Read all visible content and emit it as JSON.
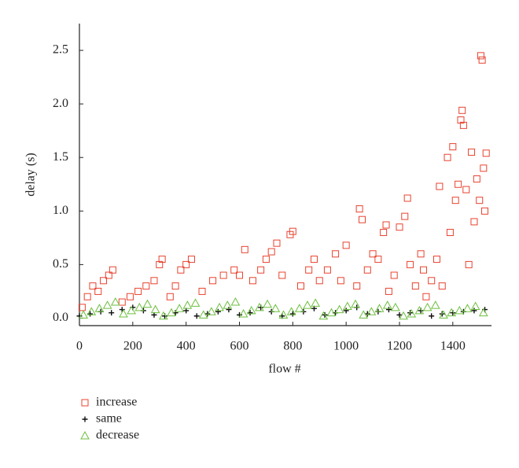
{
  "chart_data": {
    "type": "scatter",
    "xlabel": "flow #",
    "ylabel": "delay (s)",
    "xlim": [
      0,
      1545
    ],
    "ylim": [
      -0.07,
      2.75
    ],
    "xticks": [
      0,
      200,
      400,
      600,
      800,
      1000,
      1200,
      1400
    ],
    "yticks": [
      {
        "value": 0,
        "label": "0.0"
      },
      0.5,
      {
        "value": 1,
        "label": "1.0"
      },
      1.5,
      {
        "value": 2,
        "label": "2.0"
      },
      2.5
    ],
    "legend": "bottom",
    "series": [
      {
        "name": "increase",
        "color": "#e8432f",
        "marker": "square",
        "x": [
          10,
          30,
          50,
          70,
          90,
          110,
          125,
          160,
          190,
          220,
          250,
          280,
          300,
          310,
          340,
          360,
          380,
          400,
          420,
          460,
          500,
          540,
          580,
          600,
          620,
          650,
          680,
          700,
          720,
          740,
          760,
          790,
          800,
          830,
          860,
          880,
          900,
          930,
          960,
          980,
          1000,
          1040,
          1050,
          1060,
          1080,
          1100,
          1120,
          1140,
          1150,
          1160,
          1180,
          1200,
          1220,
          1230,
          1240,
          1260,
          1280,
          1290,
          1300,
          1320,
          1340,
          1350,
          1360,
          1380,
          1390,
          1400,
          1410,
          1420,
          1430,
          1435,
          1440,
          1450,
          1460,
          1470,
          1480,
          1490,
          1500,
          1505,
          1510,
          1515,
          1520,
          1525
        ],
        "values": [
          0.1,
          0.2,
          0.3,
          0.25,
          0.35,
          0.4,
          0.45,
          0.15,
          0.2,
          0.25,
          0.3,
          0.35,
          0.5,
          0.55,
          0.2,
          0.3,
          0.45,
          0.5,
          0.55,
          0.25,
          0.35,
          0.4,
          0.45,
          0.4,
          0.64,
          0.35,
          0.45,
          0.55,
          0.62,
          0.7,
          0.4,
          0.78,
          0.81,
          0.3,
          0.45,
          0.55,
          0.35,
          0.45,
          0.6,
          0.35,
          0.68,
          0.3,
          1.02,
          0.92,
          0.45,
          0.6,
          0.55,
          0.8,
          0.87,
          0.25,
          0.4,
          0.85,
          0.95,
          1.12,
          0.5,
          0.3,
          0.6,
          0.45,
          0.2,
          0.35,
          0.55,
          1.23,
          0.3,
          1.5,
          0.8,
          1.6,
          1.1,
          1.25,
          1.85,
          1.94,
          1.8,
          1.2,
          0.5,
          1.55,
          0.9,
          1.3,
          1.1,
          2.45,
          2.41,
          1.4,
          1.0,
          1.54
        ]
      },
      {
        "name": "same",
        "color": "#111111",
        "marker": "plus",
        "x": [
          0,
          40,
          80,
          120,
          160,
          200,
          240,
          280,
          320,
          360,
          400,
          440,
          480,
          520,
          560,
          600,
          640,
          680,
          720,
          760,
          800,
          840,
          880,
          920,
          960,
          1000,
          1040,
          1080,
          1120,
          1160,
          1200,
          1240,
          1280,
          1320,
          1360,
          1400,
          1440,
          1480,
          1520
        ],
        "values": [
          0.02,
          0.04,
          0.06,
          0.05,
          0.08,
          0.1,
          0.07,
          0.03,
          0.02,
          0.05,
          0.07,
          0.02,
          0.04,
          0.06,
          0.08,
          0.03,
          0.05,
          0.1,
          0.06,
          0.02,
          0.04,
          0.06,
          0.09,
          0.03,
          0.05,
          0.07,
          0.1,
          0.04,
          0.06,
          0.08,
          0.03,
          0.05,
          0.07,
          0.02,
          0.04,
          0.05,
          0.06,
          0.07,
          0.08
        ]
      },
      {
        "name": "decrease",
        "color": "#6cbf3d",
        "marker": "triangle",
        "x": [
          15,
          45,
          75,
          105,
          135,
          165,
          195,
          225,
          255,
          285,
          315,
          345,
          375,
          405,
          435,
          465,
          495,
          525,
          555,
          585,
          615,
          645,
          675,
          705,
          735,
          765,
          795,
          825,
          855,
          885,
          915,
          945,
          975,
          1005,
          1035,
          1065,
          1095,
          1125,
          1155,
          1185,
          1215,
          1245,
          1275,
          1305,
          1335,
          1365,
          1395,
          1425,
          1455,
          1485,
          1515
        ],
        "values": [
          0.03,
          0.06,
          0.09,
          0.12,
          0.15,
          0.04,
          0.07,
          0.1,
          0.13,
          0.08,
          0.02,
          0.05,
          0.09,
          0.12,
          0.14,
          0.03,
          0.06,
          0.1,
          0.12,
          0.15,
          0.04,
          0.07,
          0.1,
          0.13,
          0.09,
          0.03,
          0.06,
          0.09,
          0.12,
          0.14,
          0.02,
          0.05,
          0.08,
          0.11,
          0.13,
          0.03,
          0.06,
          0.09,
          0.12,
          0.1,
          0.02,
          0.04,
          0.07,
          0.1,
          0.12,
          0.03,
          0.05,
          0.07,
          0.09,
          0.11,
          0.05
        ]
      }
    ]
  }
}
